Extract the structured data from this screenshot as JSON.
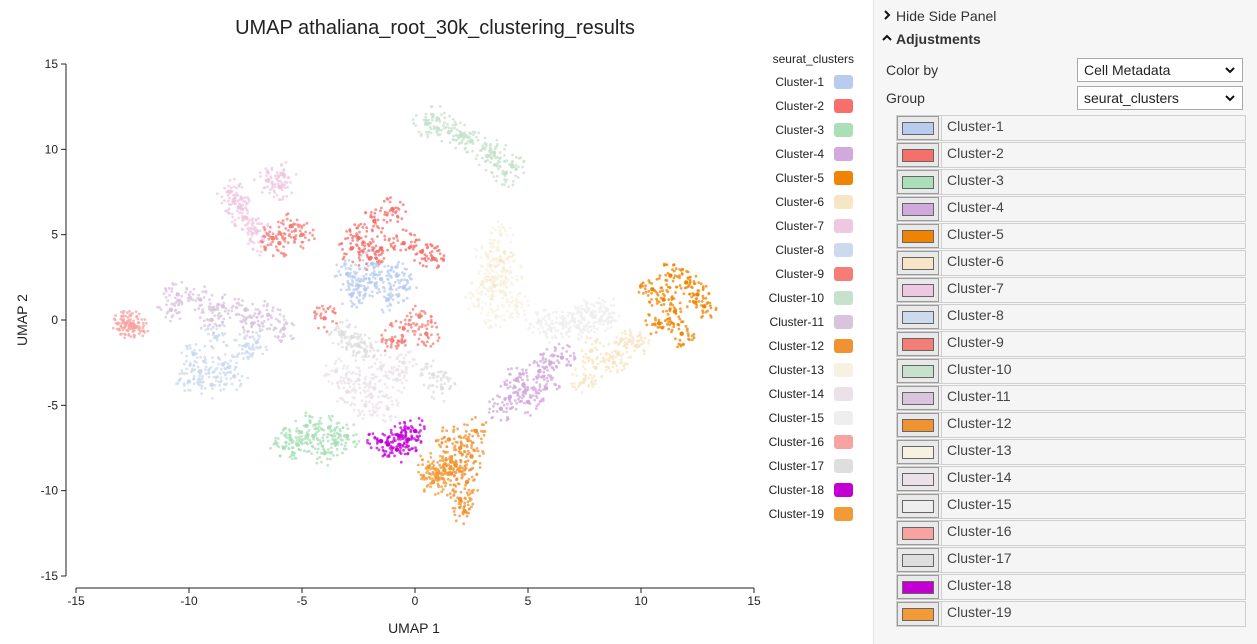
{
  "chart_data": {
    "type": "scatter",
    "title": "UMAP athaliana_root_30k_clustering_results",
    "xlabel": "UMAP 1",
    "ylabel": "UMAP 2",
    "xlim": [
      -15,
      15
    ],
    "ylim": [
      -15,
      15
    ],
    "xticks": [
      -15,
      -10,
      -5,
      0,
      5,
      10,
      15
    ],
    "yticks": [
      -15,
      -10,
      -5,
      0,
      5,
      10,
      15
    ],
    "grid": false,
    "legend_title": "seurat_clusters",
    "legend_position": "right",
    "series": [
      {
        "name": "Cluster-1",
        "color": "#b9ccf0",
        "x": [
          -2.2,
          -1.5,
          -2.8,
          -0.8,
          -1.9,
          -2.5,
          -1.2,
          -3.0,
          -0.5
        ],
        "y": [
          1.8,
          2.4,
          1.5,
          2.6,
          3.3,
          2.0,
          1.2,
          2.7,
          1.9
        ]
      },
      {
        "name": "Cluster-2",
        "color": "#f66f6a",
        "x": [
          -1.5,
          -2.5,
          -0.5,
          -1.8,
          0.3,
          -2.8,
          -1.0,
          0.8,
          -2.0
        ],
        "y": [
          4.2,
          4.8,
          4.5,
          5.8,
          4.0,
          4.2,
          6.5,
          3.6,
          3.6
        ]
      },
      {
        "name": "Cluster-3",
        "color": "#aadfb8",
        "x": [
          -4.5,
          -5.5,
          -3.5,
          -4.8,
          -3.0,
          -5.8,
          -4.0,
          -3.8,
          -5.2
        ],
        "y": [
          -6.8,
          -7.0,
          -7.2,
          -6.2,
          -6.8,
          -7.5,
          -7.8,
          -6.3,
          -7.3
        ]
      },
      {
        "name": "Cluster-4",
        "color": "#d2a9dc",
        "x": [
          4.8,
          5.5,
          4.2,
          6.0,
          3.8,
          5.0,
          6.5,
          4.5,
          5.8
        ],
        "y": [
          -3.8,
          -3.0,
          -4.5,
          -2.5,
          -5.2,
          -4.8,
          -2.2,
          -3.5,
          -4.0
        ]
      },
      {
        "name": "Cluster-5",
        "color": "#f08400",
        "x": [
          11.5,
          12.5,
          10.8,
          12.0,
          11.0,
          12.8,
          10.5,
          11.8,
          11.3
        ],
        "y": [
          0.5,
          1.5,
          -0.2,
          2.2,
          1.2,
          0.8,
          1.8,
          -0.8,
          2.6
        ]
      },
      {
        "name": "Cluster-6",
        "color": "#f7e6c5",
        "x": [
          9.0,
          8.0,
          9.5,
          7.5,
          8.8,
          7.8,
          9.8,
          3.8,
          3.5
        ],
        "y": [
          -2.0,
          -2.8,
          -1.2,
          -3.5,
          -2.5,
          -1.8,
          -1.5,
          3.5,
          2.0
        ]
      },
      {
        "name": "Cluster-7",
        "color": "#eec7e1",
        "x": [
          -7.5,
          -8.0,
          -6.5,
          -7.0,
          -5.8,
          -7.8,
          -6.8,
          -6.0,
          -8.2
        ],
        "y": [
          6.0,
          7.0,
          8.2,
          5.2,
          8.5,
          6.6,
          4.6,
          7.8,
          7.5
        ]
      },
      {
        "name": "Cluster-8",
        "color": "#ccdaee",
        "x": [
          -9.5,
          -9.0,
          -8.5,
          -10.0,
          -7.5,
          -8.8,
          -7.0,
          -9.8,
          -8.0
        ],
        "y": [
          -3.0,
          -3.8,
          -2.6,
          -3.6,
          -1.5,
          -1.0,
          -1.3,
          -2.0,
          -3.3
        ]
      },
      {
        "name": "Cluster-9",
        "color": "#f47d77",
        "x": [
          -5.5,
          -6.0,
          -5.0,
          -6.3,
          -0.5,
          0.2,
          -1.0,
          0.5,
          -4.0
        ],
        "y": [
          5.5,
          4.5,
          5.0,
          4.8,
          -0.5,
          0.2,
          -1.2,
          -0.8,
          0.1
        ]
      },
      {
        "name": "Cluster-10",
        "color": "#c6e2cc",
        "x": [
          0.5,
          1.5,
          2.5,
          3.5,
          4.0,
          3.2,
          2.0,
          1.0,
          4.3
        ],
        "y": [
          11.5,
          11.0,
          10.5,
          9.8,
          8.6,
          9.6,
          10.8,
          11.8,
          9.0
        ]
      },
      {
        "name": "Cluster-11",
        "color": "#d9c3dd",
        "x": [
          -10.5,
          -9.5,
          -8.5,
          -7.5,
          -6.5,
          -10.8,
          -9.0,
          -7.2,
          -5.8
        ],
        "y": [
          1.5,
          1.2,
          0.8,
          0.6,
          0.3,
          0.6,
          0.0,
          -0.2,
          -0.5
        ]
      },
      {
        "name": "Cluster-12",
        "color": "#f09232",
        "x": [
          2.0,
          1.8,
          2.3,
          1.5,
          2.5,
          2.0,
          1.6,
          2.2,
          2.7
        ],
        "y": [
          -7.5,
          -8.5,
          -9.5,
          -7.0,
          -8.0,
          -10.5,
          -9.0,
          -11.2,
          -6.5
        ]
      },
      {
        "name": "Cluster-13",
        "color": "#f7f1e1",
        "x": [
          3.5,
          4.0,
          3.2,
          4.5,
          3.8,
          2.8,
          4.2,
          3.0,
          3.6
        ],
        "y": [
          2.5,
          1.5,
          3.8,
          0.8,
          5.0,
          1.2,
          2.8,
          2.2,
          0.2
        ]
      },
      {
        "name": "Cluster-14",
        "color": "#ebe1e8",
        "x": [
          -2.5,
          -1.5,
          -0.5,
          -3.0,
          -1.8,
          -2.2,
          -0.8,
          -3.5,
          -1.2
        ],
        "y": [
          -3.5,
          -2.8,
          -2.5,
          -4.2,
          -4.0,
          -5.0,
          -3.5,
          -3.0,
          -5.2
        ]
      },
      {
        "name": "Cluster-15",
        "color": "#eeeeee",
        "x": [
          6.5,
          7.0,
          7.8,
          8.5,
          6.0,
          7.2,
          8.2,
          5.5,
          7.6
        ],
        "y": [
          -0.2,
          0.0,
          0.3,
          0.6,
          -0.5,
          -0.4,
          0.0,
          -0.1,
          0.5
        ]
      },
      {
        "name": "Cluster-16",
        "color": "#f7a3a0",
        "x": [
          -12.6,
          -12.8,
          -12.5,
          -12.4
        ],
        "y": [
          -0.3,
          -0.2,
          -0.25,
          -0.4
        ]
      },
      {
        "name": "Cluster-17",
        "color": "#dedede",
        "x": [
          -2.8,
          -2.5,
          -3.2,
          -2.2,
          0.8,
          1.2
        ],
        "y": [
          -1.0,
          -1.5,
          -0.8,
          -1.8,
          -3.2,
          -4.0
        ]
      },
      {
        "name": "Cluster-18",
        "color": "#c300d4",
        "x": [
          -0.7,
          -0.3,
          -1.2,
          0.0,
          -1.5,
          -0.8
        ],
        "y": [
          -6.8,
          -7.0,
          -7.3,
          -6.5,
          -7.1,
          -7.6
        ]
      },
      {
        "name": "Cluster-19",
        "color": "#f29a36",
        "x": [
          1.0,
          1.3,
          0.8,
          1.6,
          0.6
        ],
        "y": [
          -9.0,
          -8.8,
          -9.5,
          -8.3,
          -8.6
        ]
      }
    ]
  },
  "side_panel": {
    "hide_label": "Hide Side Panel",
    "hide_icon": "chevron-right-icon",
    "adjustments_label": "Adjustments",
    "adjustments_icon": "chevron-up-icon",
    "color_by_label": "Color by",
    "color_by_value": "Cell Metadata",
    "group_label": "Group",
    "group_value": "seurat_clusters",
    "clusters": [
      {
        "label": "Cluster-1",
        "color": "#b9ccf0"
      },
      {
        "label": "Cluster-2",
        "color": "#f66f6a"
      },
      {
        "label": "Cluster-3",
        "color": "#aadfb8"
      },
      {
        "label": "Cluster-4",
        "color": "#d2a9dc"
      },
      {
        "label": "Cluster-5",
        "color": "#f08400"
      },
      {
        "label": "Cluster-6",
        "color": "#f7e6c5"
      },
      {
        "label": "Cluster-7",
        "color": "#eec7e1"
      },
      {
        "label": "Cluster-8",
        "color": "#ccdaee"
      },
      {
        "label": "Cluster-9",
        "color": "#f47d77"
      },
      {
        "label": "Cluster-10",
        "color": "#c6e2cc"
      },
      {
        "label": "Cluster-11",
        "color": "#d9c3dd"
      },
      {
        "label": "Cluster-12",
        "color": "#f09232"
      },
      {
        "label": "Cluster-13",
        "color": "#f7f1e1"
      },
      {
        "label": "Cluster-14",
        "color": "#ebe1e8"
      },
      {
        "label": "Cluster-15",
        "color": "#eeeeee"
      },
      {
        "label": "Cluster-16",
        "color": "#f7a3a0"
      },
      {
        "label": "Cluster-17",
        "color": "#dedede"
      },
      {
        "label": "Cluster-18",
        "color": "#c300d4"
      },
      {
        "label": "Cluster-19",
        "color": "#f29a36"
      }
    ]
  }
}
